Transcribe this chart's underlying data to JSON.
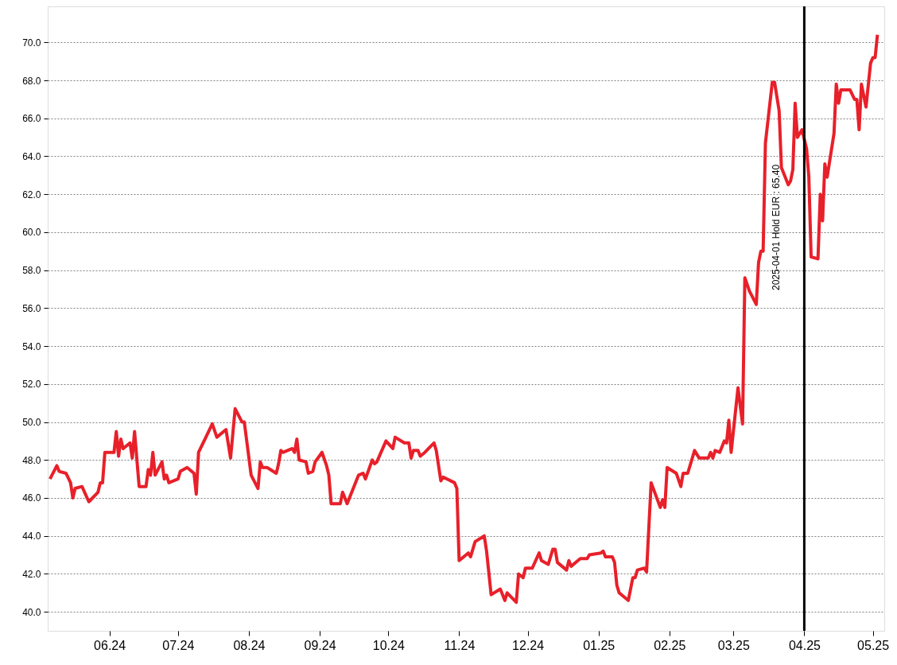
{
  "chart_data": {
    "type": "line",
    "x": [
      "2024-05-06",
      "2024-05-09",
      "2024-05-10",
      "2024-05-13",
      "2024-05-15",
      "2024-05-16",
      "2024-05-17",
      "2024-05-20",
      "2024-05-23",
      "2024-05-27",
      "2024-05-28",
      "2024-05-29",
      "2024-05-30",
      "2024-06-03",
      "2024-06-04",
      "2024-06-05",
      "2024-06-06",
      "2024-06-07",
      "2024-06-10",
      "2024-06-11",
      "2024-06-12",
      "2024-06-14",
      "2024-06-17",
      "2024-06-18",
      "2024-06-19",
      "2024-06-20",
      "2024-06-21",
      "2024-06-24",
      "2024-06-25",
      "2024-06-26",
      "2024-06-27",
      "2024-07-01",
      "2024-07-02",
      "2024-07-05",
      "2024-07-08",
      "2024-07-09",
      "2024-07-10",
      "2024-07-16",
      "2024-07-18",
      "2024-07-22",
      "2024-07-24",
      "2024-07-26",
      "2024-07-29",
      "2024-07-30",
      "2024-08-02",
      "2024-08-05",
      "2024-08-06",
      "2024-08-07",
      "2024-08-09",
      "2024-08-13",
      "2024-08-14",
      "2024-08-15",
      "2024-08-16",
      "2024-08-20",
      "2024-08-21",
      "2024-08-22",
      "2024-08-23",
      "2024-08-26",
      "2024-08-27",
      "2024-08-29",
      "2024-08-30",
      "2024-09-02",
      "2024-09-04",
      "2024-09-05",
      "2024-09-06",
      "2024-09-10",
      "2024-09-11",
      "2024-09-13",
      "2024-09-18",
      "2024-09-20",
      "2024-09-21",
      "2024-09-24",
      "2024-09-25",
      "2024-09-26",
      "2024-09-30",
      "2024-10-03",
      "2024-10-04",
      "2024-10-08",
      "2024-10-10",
      "2024-10-11",
      "2024-10-12",
      "2024-10-14",
      "2024-10-15",
      "2024-10-17",
      "2024-10-21",
      "2024-10-22",
      "2024-10-24",
      "2024-10-25",
      "2024-10-30",
      "2024-10-31",
      "2024-11-01",
      "2024-11-05",
      "2024-11-06",
      "2024-11-08",
      "2024-11-12",
      "2024-11-13",
      "2024-11-15",
      "2024-11-19",
      "2024-11-21",
      "2024-11-22",
      "2024-11-26",
      "2024-11-27",
      "2024-11-29",
      "2024-11-30",
      "2024-12-03",
      "2024-12-06",
      "2024-12-07",
      "2024-12-10",
      "2024-12-12",
      "2024-12-13",
      "2024-12-14",
      "2024-12-18",
      "2024-12-19",
      "2024-12-20",
      "2024-12-24",
      "2024-12-27",
      "2024-12-28",
      "2025-01-02",
      "2025-01-03",
      "2025-01-04",
      "2025-01-07",
      "2025-01-08",
      "2025-01-09",
      "2025-01-10",
      "2025-01-14",
      "2025-01-16",
      "2025-01-17",
      "2025-01-18",
      "2025-01-21",
      "2025-01-22",
      "2025-01-24",
      "2025-01-28",
      "2025-01-29",
      "2025-01-30",
      "2025-01-31",
      "2025-02-04",
      "2025-02-06",
      "2025-02-07",
      "2025-02-09",
      "2025-02-12",
      "2025-02-14",
      "2025-02-18",
      "2025-02-19",
      "2025-02-20",
      "2025-02-21",
      "2025-02-23",
      "2025-02-25",
      "2025-02-26",
      "2025-02-27",
      "2025-02-28",
      "2025-03-03",
      "2025-03-05",
      "2025-03-06",
      "2025-03-08",
      "2025-03-11",
      "2025-03-12",
      "2025-03-13",
      "2025-03-14",
      "2025-03-15",
      "2025-03-18",
      "2025-03-19",
      "2025-03-21",
      "2025-03-22",
      "2025-03-25",
      "2025-03-26",
      "2025-03-27",
      "2025-03-28",
      "2025-03-29",
      "2025-03-31",
      "2025-04-02",
      "2025-04-03",
      "2025-04-04",
      "2025-04-07",
      "2025-04-08",
      "2025-04-09",
      "2025-04-10",
      "2025-04-11",
      "2025-04-14",
      "2025-04-15",
      "2025-04-16",
      "2025-04-17",
      "2025-04-21",
      "2025-04-23",
      "2025-04-24",
      "2025-04-25",
      "2025-04-26",
      "2025-04-28",
      "2025-04-30",
      "2025-05-01",
      "2025-05-02",
      "2025-05-03"
    ],
    "series": [
      {
        "color": "#e8202a",
        "values": [
          47.0,
          47.7,
          47.4,
          47.3,
          46.8,
          46.0,
          46.5,
          46.6,
          45.8,
          46.3,
          46.8,
          46.8,
          48.4,
          48.4,
          49.5,
          48.2,
          49.1,
          48.6,
          48.9,
          48.1,
          49.5,
          46.6,
          46.6,
          47.5,
          47.2,
          48.4,
          47.2,
          47.9,
          47.0,
          47.2,
          46.8,
          47.0,
          47.4,
          47.6,
          47.3,
          46.2,
          48.4,
          49.9,
          49.2,
          49.6,
          48.1,
          50.7,
          50.0,
          50.0,
          47.2,
          46.5,
          47.9,
          47.6,
          47.6,
          47.3,
          47.8,
          48.5,
          48.4,
          48.6,
          48.4,
          49.1,
          48.0,
          47.9,
          47.3,
          47.4,
          47.9,
          48.4,
          47.7,
          47.2,
          45.7,
          45.7,
          46.3,
          45.7,
          47.2,
          47.3,
          47.0,
          48.0,
          47.8,
          47.9,
          49.0,
          48.6,
          49.2,
          48.9,
          48.9,
          48.1,
          48.5,
          48.5,
          48.2,
          48.4,
          48.9,
          48.5,
          46.9,
          47.1,
          46.8,
          46.5,
          42.7,
          43.1,
          42.9,
          43.7,
          44.0,
          43.2,
          40.9,
          41.2,
          40.6,
          41.0,
          40.5,
          42.0,
          41.8,
          42.3,
          42.3,
          43.1,
          42.7,
          42.5,
          43.3,
          43.3,
          42.6,
          42.2,
          42.7,
          42.4,
          42.8,
          42.8,
          43.0,
          43.1,
          43.2,
          42.9,
          42.9,
          42.6,
          41.4,
          41.0,
          40.6,
          41.8,
          41.8,
          42.2,
          42.3,
          42.1,
          46.8,
          45.5,
          45.9,
          45.5,
          47.6,
          47.3,
          46.6,
          47.3,
          47.3,
          48.5,
          48.1,
          48.1,
          48.4,
          48.1,
          48.5,
          48.4,
          49.0,
          48.9,
          50.1,
          48.4,
          51.8,
          49.9,
          57.6,
          56.9,
          56.2,
          58.4,
          59.0,
          59.0,
          64.7,
          67.9,
          67.9,
          66.4,
          63.4,
          62.5,
          62.7,
          63.3,
          66.8,
          65.0,
          65.4,
          64.4,
          62.9,
          58.7,
          58.6,
          62.0,
          60.6,
          63.6,
          62.9,
          65.2,
          67.8,
          66.8,
          67.5,
          67.5,
          67.0,
          67.0,
          65.4,
          67.8,
          66.6,
          68.9,
          69.2,
          69.2,
          70.4
        ]
      }
    ],
    "xlim": [
      "2024-05-05",
      "2025-05-06"
    ],
    "xticks": [
      {
        "value": "2024-06-01",
        "label": "06.24"
      },
      {
        "value": "2024-07-01",
        "label": "07.24"
      },
      {
        "value": "2024-08-01",
        "label": "08.24"
      },
      {
        "value": "2024-09-01",
        "label": "09.24"
      },
      {
        "value": "2024-10-01",
        "label": "10.24"
      },
      {
        "value": "2024-11-01",
        "label": "11.24"
      },
      {
        "value": "2024-12-01",
        "label": "12.24"
      },
      {
        "value": "2025-01-01",
        "label": "01.25"
      },
      {
        "value": "2025-02-01",
        "label": "02.25"
      },
      {
        "value": "2025-03-01",
        "label": "03.25"
      },
      {
        "value": "2025-04-01",
        "label": "04.25"
      },
      {
        "value": "2025-05-01",
        "label": "05.25"
      }
    ],
    "ylim": [
      39.0,
      71.9
    ],
    "yticks": [
      {
        "value": 40,
        "label": "40.0"
      },
      {
        "value": 42,
        "label": "42.0"
      },
      {
        "value": 44,
        "label": "44.0"
      },
      {
        "value": 46,
        "label": "46.0"
      },
      {
        "value": 48,
        "label": "48.0"
      },
      {
        "value": 50,
        "label": "50.0"
      },
      {
        "value": 52,
        "label": "52.0"
      },
      {
        "value": 54,
        "label": "54.0"
      },
      {
        "value": 56,
        "label": "56.0"
      },
      {
        "value": 58,
        "label": "58.0"
      },
      {
        "value": 60,
        "label": "60.0"
      },
      {
        "value": 62,
        "label": "62.0"
      },
      {
        "value": 64,
        "label": "64.0"
      },
      {
        "value": 66,
        "label": "66.0"
      },
      {
        "value": 68,
        "label": "68.0"
      },
      {
        "value": 70,
        "label": "70.0"
      }
    ],
    "ref_lines": [
      {
        "axis": "x",
        "value": "2025-04-01",
        "label": "2025-04-01 Hold EUR : 65.40",
        "color": "#000000"
      }
    ],
    "grid": "y",
    "marker": "none",
    "line_style": "solid"
  }
}
